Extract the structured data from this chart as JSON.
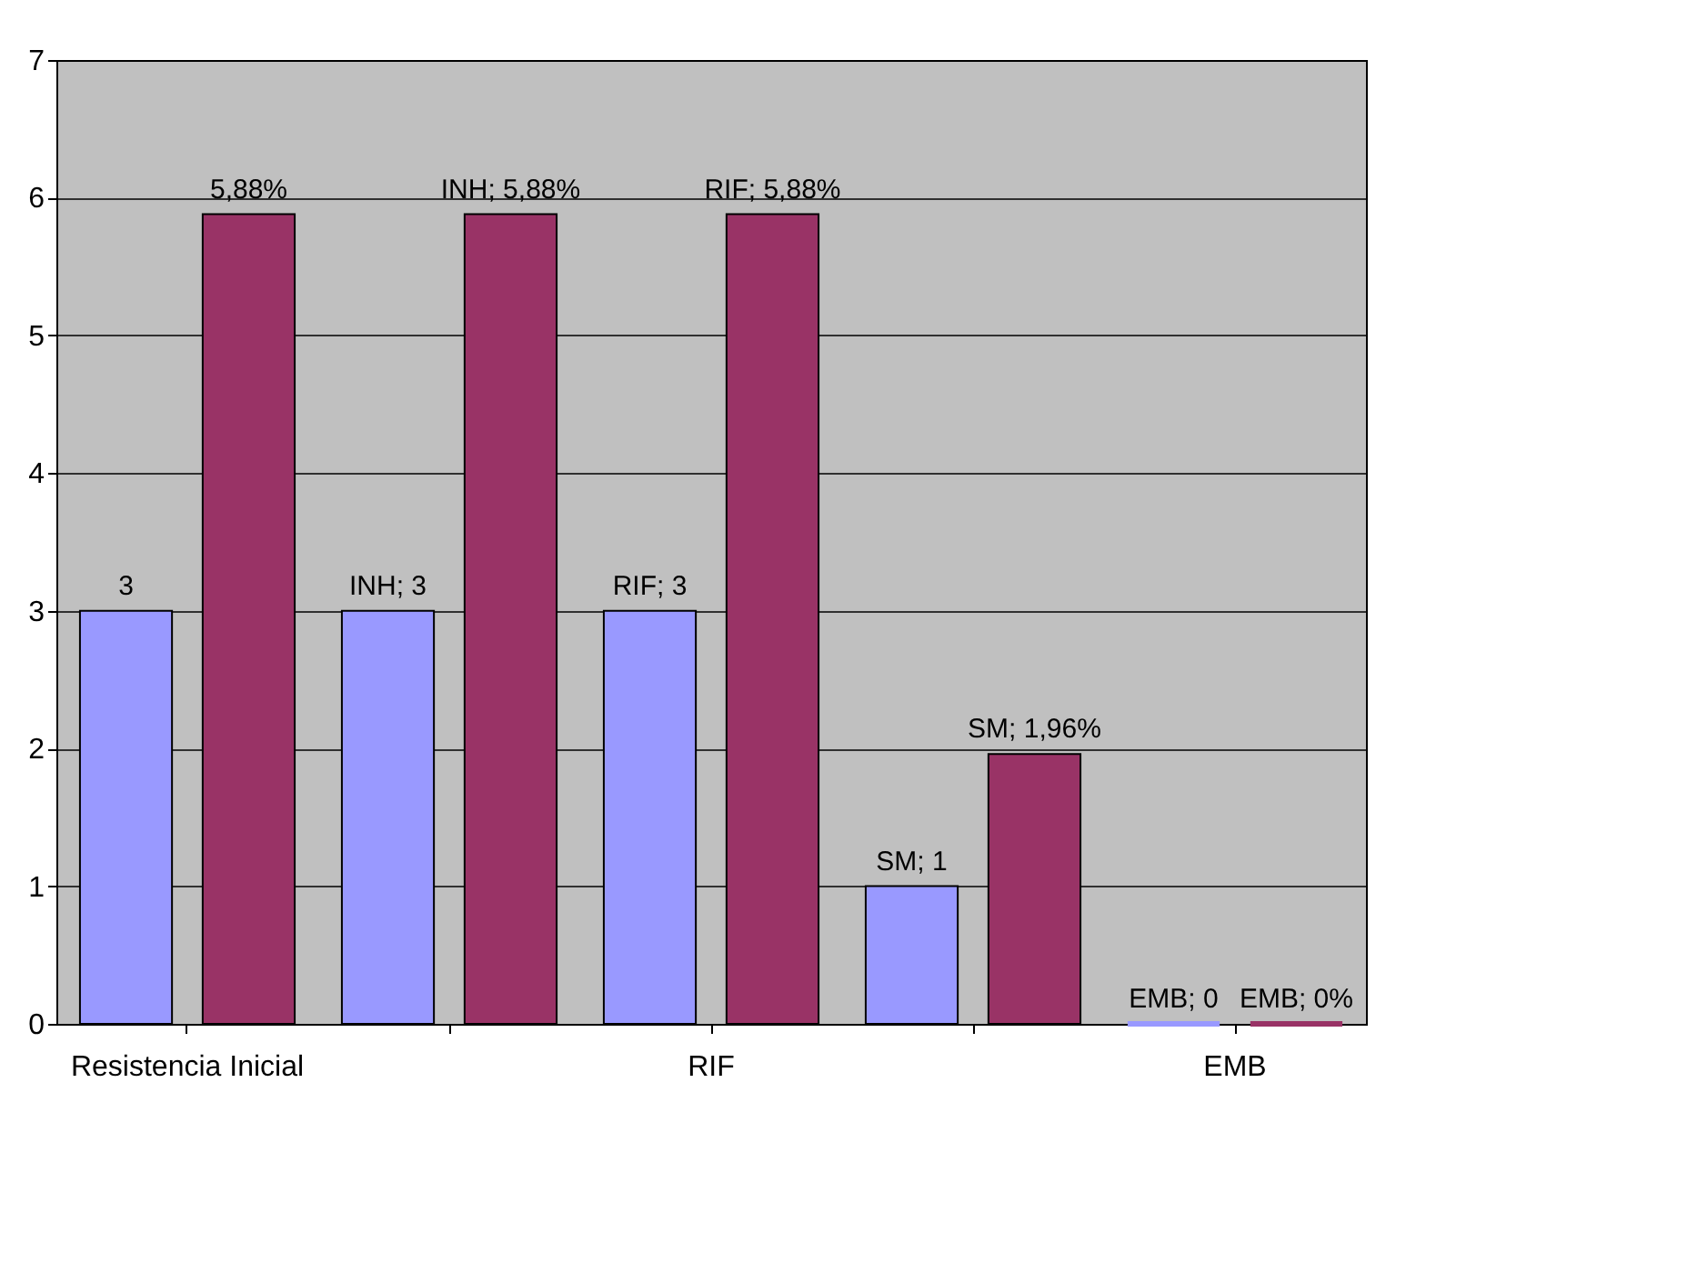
{
  "chart_data": {
    "type": "bar",
    "categories": [
      "Resistencia Inicial",
      null,
      "RIF",
      null,
      "EMB"
    ],
    "series": [
      {
        "color": "#9999ff",
        "values": [
          3,
          3,
          3,
          1,
          0
        ],
        "value_labels": [
          "3",
          "INH; 3",
          "RIF; 3",
          "SM; 1",
          "EMB; 0"
        ]
      },
      {
        "color": "#993366",
        "values": [
          5.88,
          5.88,
          5.88,
          1.96,
          0
        ],
        "value_labels": [
          "5,88%",
          "INH; 5,88%",
          "RIF; 5,88%",
          "SM; 1,96%",
          "EMB; 0%"
        ]
      }
    ],
    "ylim": [
      0,
      7
    ],
    "yticks": [
      0,
      1,
      2,
      3,
      4,
      5,
      6,
      7
    ],
    "grid": "y"
  }
}
